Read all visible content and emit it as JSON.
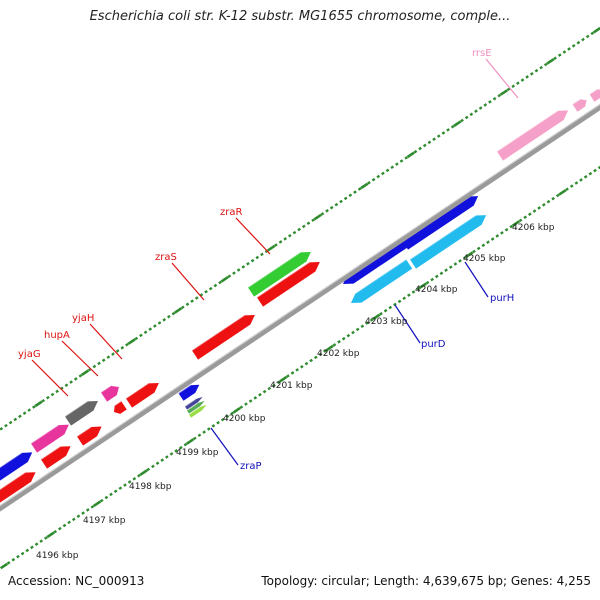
{
  "title": "Escherichia coli str. K-12 substr. MG1655 chromosome, comple...",
  "footer": {
    "accession": "Accession: NC_000913",
    "topology": "Topology: circular; Length: 4,639,675 bp; Genes: 4,255"
  },
  "colors": {
    "backbone": "#8a8a8a",
    "tick": "#2e8b2e",
    "red_gene": "#ee1111",
    "magenta_gene": "#e8359e",
    "gray_gene": "#666666",
    "green_gene": "#33cc33",
    "blue_gene": "#1111dd",
    "cyan_gene": "#22bbee",
    "pink_rrna": "#f5a0c8",
    "forward_label": "#dd1111",
    "reverse_label": "#1111bb",
    "rrna_label": "#f090c0"
  },
  "scale_ticks": [
    "4196 kbp",
    "4197 kbp",
    "4198 kbp",
    "4199 kbp",
    "4200 kbp",
    "4201 kbp",
    "4202 kbp",
    "4203 kbp",
    "4204 kbp",
    "4205 kbp",
    "4206 kbp"
  ],
  "gene_labels": {
    "yjaG": "yjaG",
    "hupA": "hupA",
    "yjaH": "yjaH",
    "zraS": "zraS",
    "zraR": "zraR",
    "rrsE": "rrsE",
    "zraP": "zraP",
    "purD": "purD",
    "purH": "purH"
  }
}
